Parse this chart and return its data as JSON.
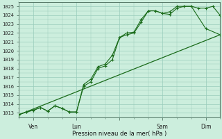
{
  "title": "",
  "xlabel": "Pression niveau de la mer( hPa )",
  "bg_color": "#cceedd",
  "grid_color": "#99ccbb",
  "line_color": "#1a6b1a",
  "ylim": [
    1012.5,
    1025.5
  ],
  "ytick_min": 1013,
  "ytick_max": 1025,
  "xtick_positions": [
    0.5,
    2.0,
    3.5,
    5.0,
    6.5
  ],
  "xtick_labels": [
    "Ven",
    "Lun",
    "",
    "Sam",
    "Dim"
  ],
  "xmin": 0.0,
  "xmax": 7.0,
  "line1_x": [
    0.0,
    0.25,
    0.5,
    0.75,
    1.0,
    1.25,
    1.5,
    1.75,
    2.0,
    2.25,
    2.5,
    2.75,
    3.0,
    3.25,
    3.5,
    3.75,
    4.0,
    4.25,
    4.5,
    4.75,
    5.0,
    5.25,
    5.5,
    5.75,
    6.0,
    6.25,
    6.5,
    6.75,
    7.0
  ],
  "line1_y": [
    1012.8,
    1013.1,
    1013.3,
    1013.6,
    1013.2,
    1013.8,
    1013.5,
    1013.1,
    1013.1,
    1016.0,
    1016.5,
    1018.0,
    1018.3,
    1019.0,
    1021.5,
    1021.8,
    1022.0,
    1023.2,
    1024.5,
    1024.5,
    1024.2,
    1024.1,
    1024.8,
    1025.0,
    1025.0,
    1024.8,
    1024.8,
    1025.0,
    1024.0
  ],
  "line2_x": [
    0.0,
    0.25,
    0.5,
    0.75,
    1.0,
    1.25,
    1.5,
    1.75,
    2.0,
    2.25,
    2.5,
    2.75,
    3.0,
    3.25,
    3.5,
    3.75,
    4.0,
    4.25,
    4.5,
    4.75,
    5.0,
    5.25,
    5.5,
    5.75,
    6.0,
    6.5,
    7.0
  ],
  "line2_y": [
    1012.8,
    1013.1,
    1013.3,
    1013.6,
    1013.2,
    1013.8,
    1013.5,
    1013.1,
    1013.1,
    1016.2,
    1016.8,
    1018.2,
    1018.5,
    1019.5,
    1021.5,
    1022.0,
    1022.1,
    1023.5,
    1024.5,
    1024.5,
    1024.2,
    1024.4,
    1025.0,
    1025.0,
    1025.0,
    1022.5,
    1021.8
  ],
  "line3_x": [
    0.0,
    7.0
  ],
  "line3_y": [
    1012.8,
    1021.8
  ]
}
